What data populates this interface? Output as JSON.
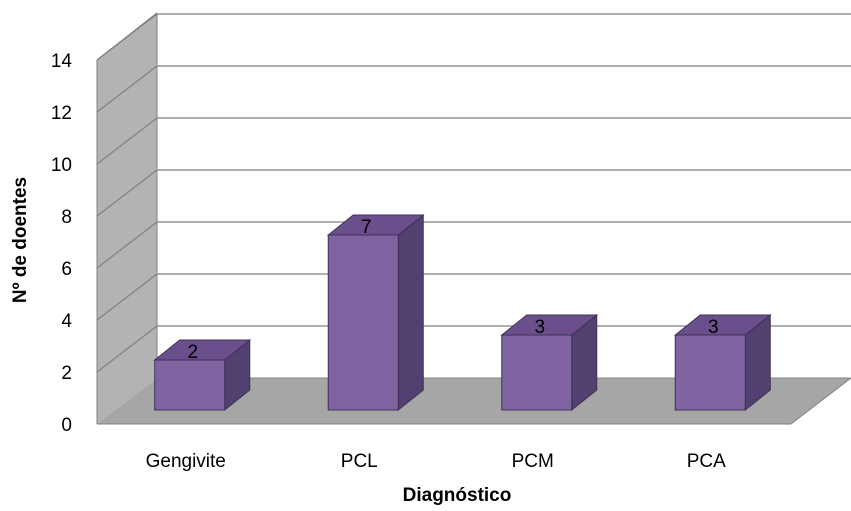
{
  "chart_data": {
    "type": "bar",
    "categories": [
      "Gengivite",
      "PCL",
      "PCM",
      "PCA"
    ],
    "values": [
      2,
      7,
      3,
      3
    ],
    "data_labels": [
      "2",
      "7",
      "3",
      "3"
    ],
    "title": "",
    "xlabel": "Diagnóstico",
    "ylabel": "Nº de doentes",
    "ylim": [
      0,
      14
    ],
    "yticks": [
      "0",
      "2",
      "4",
      "6",
      "8",
      "10",
      "12",
      "14"
    ],
    "grid": true,
    "legend": "none",
    "style": "3d-column",
    "colors": {
      "bar_front": "#8064a2",
      "bar_top": "#6a4f8c",
      "bar_side": "#514070",
      "floor": "#a6a6a6",
      "wall": "#b3b3b3",
      "gridline": "#808080"
    }
  }
}
